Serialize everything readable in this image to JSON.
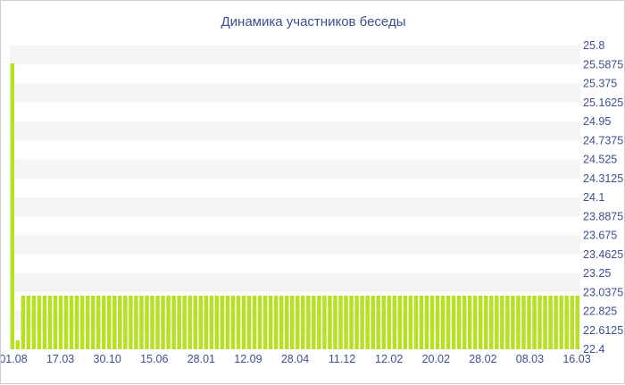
{
  "chart_data": {
    "type": "bar",
    "title": "Динамика участников беседы",
    "xlabel": "",
    "ylabel": "",
    "ylim": [
      22.4,
      25.8
    ],
    "y_ticks": [
      "25.8",
      "25.5875",
      "25.375",
      "25.1625",
      "24.95",
      "24.7375",
      "24.525",
      "24.3125",
      "24.1",
      "23.8875",
      "23.675",
      "23.4625",
      "23.25",
      "23.0375",
      "22.825",
      "22.6125",
      "22.4"
    ],
    "x_ticks": [
      "01.08",
      "17.03",
      "30.10",
      "15.06",
      "28.01",
      "12.09",
      "28.04",
      "11.12",
      "12.02",
      "20.02",
      "28.02",
      "08.03",
      "16.03"
    ],
    "values_head": [
      25.6,
      22.5
    ],
    "values_rest_count": 104,
    "values_rest": 23.0,
    "grid": true,
    "legend": "none",
    "bar_color": "#b8e026",
    "band_color": "#f5f5f5",
    "text_color": "#3d4f8f"
  }
}
